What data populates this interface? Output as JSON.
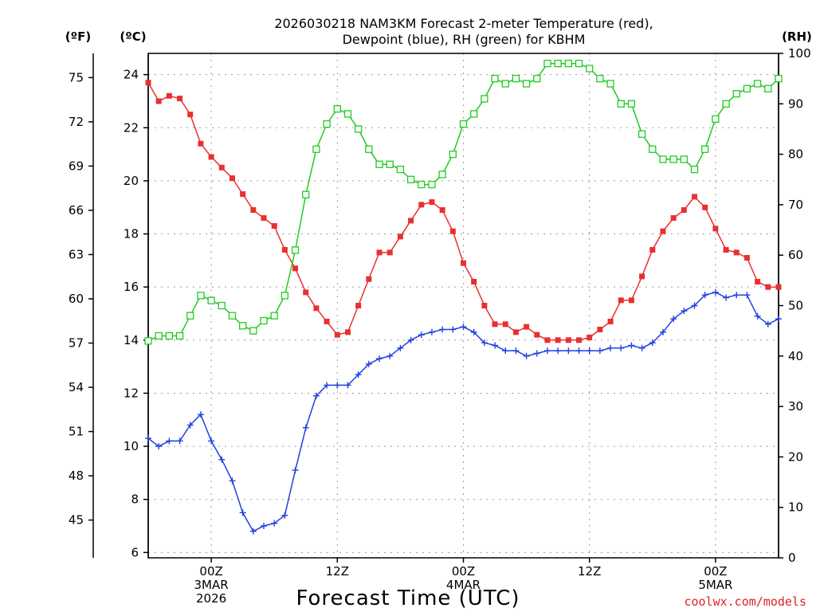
{
  "chart_data": {
    "type": "line",
    "title_line1": "2026030218 NAM3KM Forecast 2-meter Temperature (red),",
    "title_line2": "Dewpoint (blue), RH (green) for KBHM",
    "xlabel": "Forecast Time (UTC)",
    "credit": "coolwx.com/models",
    "left_outer_unit": "(ºF)",
    "left_unit": "(ºC)",
    "right_unit": "(RH)",
    "celsius_axis": {
      "ylim": [
        5.8,
        24.8
      ],
      "ticks": [
        "6",
        "8",
        "10",
        "12",
        "14",
        "16",
        "18",
        "20",
        "22",
        "24"
      ]
    },
    "fahrenheit_axis": {
      "ticks": [
        "45",
        "48",
        "51",
        "54",
        "57",
        "60",
        "63",
        "66",
        "69",
        "72",
        "75"
      ]
    },
    "rh_axis": {
      "ylim": [
        0,
        100
      ],
      "ticks": [
        "0",
        "10",
        "20",
        "30",
        "40",
        "50",
        "60",
        "70",
        "80",
        "90",
        "100"
      ]
    },
    "x_axis": {
      "unit": "forecast hours from 2026030218",
      "xlim": [
        0,
        60
      ],
      "ticks": [
        {
          "hour": 6,
          "lines": [
            "00Z",
            "3MAR",
            "2026"
          ]
        },
        {
          "hour": 18,
          "lines": [
            "12Z"
          ]
        },
        {
          "hour": 30,
          "lines": [
            "00Z",
            "4MAR"
          ]
        },
        {
          "hour": 42,
          "lines": [
            "12Z"
          ]
        },
        {
          "hour": 54,
          "lines": [
            "00Z",
            "5MAR"
          ]
        }
      ]
    },
    "grid": true,
    "series": [
      {
        "name": "Temperature",
        "axis": "celsius",
        "color": "#e83030",
        "marker": "filled-square",
        "x": [
          0,
          1,
          2,
          3,
          4,
          5,
          6,
          7,
          8,
          9,
          10,
          11,
          12,
          13,
          14,
          15,
          16,
          17,
          18,
          19,
          20,
          21,
          22,
          23,
          24,
          25,
          26,
          27,
          28,
          29,
          30,
          31,
          32,
          33,
          34,
          35,
          36,
          37,
          38,
          39,
          40,
          41,
          42,
          43,
          44,
          45,
          46,
          47,
          48,
          49,
          50,
          51,
          52,
          53,
          54,
          55,
          56,
          57,
          58,
          59,
          60
        ],
        "y": [
          23.7,
          23.0,
          23.2,
          23.1,
          22.5,
          21.4,
          20.9,
          20.5,
          20.1,
          19.5,
          18.9,
          18.6,
          18.3,
          17.4,
          16.7,
          15.8,
          15.2,
          14.7,
          14.2,
          14.3,
          15.3,
          16.3,
          17.3,
          17.3,
          17.9,
          18.5,
          19.1,
          19.2,
          18.9,
          18.1,
          16.9,
          16.2,
          15.3,
          14.6,
          14.6,
          14.3,
          14.5,
          14.2,
          14.0,
          14.0,
          14.0,
          14.0,
          14.1,
          14.4,
          14.7,
          15.5,
          15.5,
          16.4,
          17.4,
          18.1,
          18.6,
          18.9,
          19.4,
          19.0,
          18.2,
          17.4,
          17.3,
          17.1,
          16.2,
          16.0,
          16.0
        ]
      },
      {
        "name": "Dewpoint",
        "axis": "celsius",
        "color": "#2040e0",
        "marker": "plus",
        "x": [
          0,
          1,
          2,
          3,
          4,
          5,
          6,
          7,
          8,
          9,
          10,
          11,
          12,
          13,
          14,
          15,
          16,
          17,
          18,
          19,
          20,
          21,
          22,
          23,
          24,
          25,
          26,
          27,
          28,
          29,
          30,
          31,
          32,
          33,
          34,
          35,
          36,
          37,
          38,
          39,
          40,
          41,
          42,
          43,
          44,
          45,
          46,
          47,
          48,
          49,
          50,
          51,
          52,
          53,
          54,
          55,
          56,
          57,
          58,
          59,
          60
        ],
        "y": [
          10.3,
          10.0,
          10.2,
          10.2,
          10.8,
          11.2,
          10.2,
          9.5,
          8.7,
          7.5,
          6.8,
          7.0,
          7.1,
          7.4,
          9.1,
          10.7,
          11.9,
          12.3,
          12.3,
          12.3,
          12.7,
          13.1,
          13.3,
          13.4,
          13.7,
          14.0,
          14.2,
          14.3,
          14.4,
          14.4,
          14.5,
          14.3,
          13.9,
          13.8,
          13.6,
          13.6,
          13.4,
          13.5,
          13.6,
          13.6,
          13.6,
          13.6,
          13.6,
          13.6,
          13.7,
          13.7,
          13.8,
          13.7,
          13.9,
          14.3,
          14.8,
          15.1,
          15.3,
          15.7,
          15.8,
          15.6,
          15.7,
          15.7,
          14.9,
          14.6,
          14.8
        ]
      },
      {
        "name": "RH",
        "axis": "rh",
        "color": "#20cc20",
        "marker": "open-square",
        "x": [
          0,
          1,
          2,
          3,
          4,
          5,
          6,
          7,
          8,
          9,
          10,
          11,
          12,
          13,
          14,
          15,
          16,
          17,
          18,
          19,
          20,
          21,
          22,
          23,
          24,
          25,
          26,
          27,
          28,
          29,
          30,
          31,
          32,
          33,
          34,
          35,
          36,
          37,
          38,
          39,
          40,
          41,
          42,
          43,
          44,
          45,
          46,
          47,
          48,
          49,
          50,
          51,
          52,
          53,
          54,
          55,
          56,
          57,
          58,
          59,
          60
        ],
        "y": [
          43,
          44,
          44,
          44,
          48,
          52,
          51,
          50,
          48,
          46,
          45,
          47,
          48,
          52,
          61,
          72,
          81,
          86,
          89,
          88,
          85,
          81,
          78,
          78,
          77,
          75,
          74,
          74,
          76,
          80,
          86,
          88,
          91,
          95,
          94,
          95,
          94,
          95,
          98,
          98,
          98,
          98,
          97,
          95,
          94,
          90,
          90,
          84,
          81,
          79,
          79,
          79,
          77,
          81,
          87,
          90,
          92,
          93,
          94,
          93,
          95
        ]
      }
    ]
  }
}
